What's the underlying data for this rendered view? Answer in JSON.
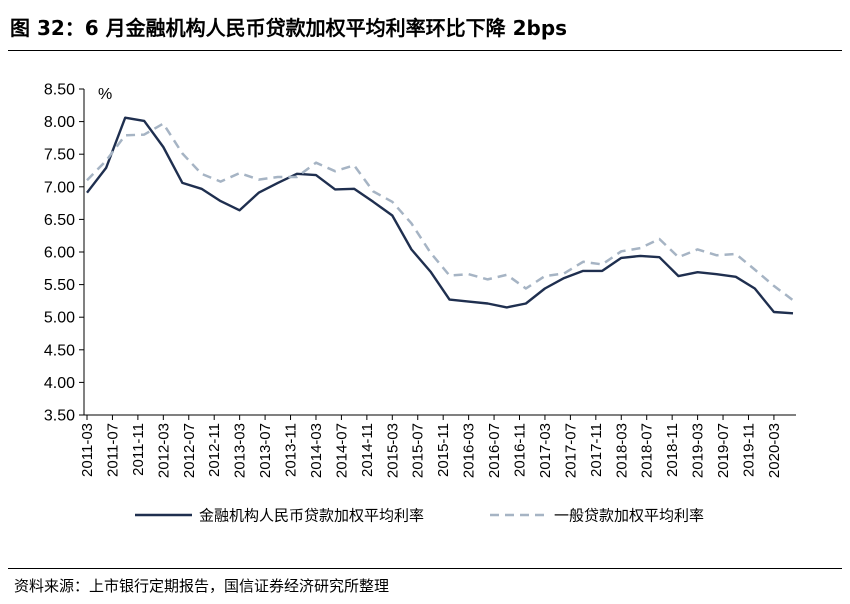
{
  "title": "图 32：6 月金融机构人民币贷款加权平均利率环比下降 2bps",
  "source": "资料来源：上市银行定期报告，国信证券经济研究所整理",
  "chart_data": {
    "type": "line",
    "title": "图 32：6 月金融机构人民币贷款加权平均利率环比下降 2bps",
    "xlabel": "",
    "ylabel": "%",
    "ylim": [
      3.5,
      8.5
    ],
    "yticks": [
      "3.50",
      "4.00",
      "4.50",
      "5.00",
      "5.50",
      "6.00",
      "6.50",
      "7.00",
      "7.50",
      "8.00",
      "8.50"
    ],
    "x_tick_labels": [
      "2011-03",
      "2011-07",
      "2011-11",
      "2012-03",
      "2012-07",
      "2012-11",
      "2013-03",
      "2013-07",
      "2013-11",
      "2014-03",
      "2014-07",
      "2014-11",
      "2015-03",
      "2015-07",
      "2015-11",
      "2016-03",
      "2016-07",
      "2016-11",
      "2017-03",
      "2017-07",
      "2017-11",
      "2018-03",
      "2018-07",
      "2018-11",
      "2019-03",
      "2019-07",
      "2019-11",
      "2020-03"
    ],
    "x": [
      "2011-03",
      "2011-06",
      "2011-09",
      "2011-12",
      "2012-03",
      "2012-06",
      "2012-09",
      "2012-12",
      "2013-03",
      "2013-06",
      "2013-09",
      "2013-12",
      "2014-03",
      "2014-06",
      "2014-09",
      "2014-12",
      "2015-03",
      "2015-06",
      "2015-09",
      "2015-12",
      "2016-03",
      "2016-06",
      "2016-09",
      "2016-12",
      "2017-03",
      "2017-06",
      "2017-09",
      "2017-12",
      "2018-03",
      "2018-06",
      "2018-09",
      "2018-12",
      "2019-03",
      "2019-06",
      "2019-09",
      "2019-12",
      "2020-03",
      "2020-06"
    ],
    "legend_position": "bottom",
    "grid": false,
    "series": [
      {
        "name": "金融机构人民币贷款加权平均利率",
        "color": "#1f2f4f",
        "style": "solid",
        "values": [
          6.91,
          7.29,
          8.06,
          8.01,
          7.61,
          7.06,
          6.97,
          6.78,
          6.64,
          6.91,
          7.06,
          7.2,
          7.18,
          6.96,
          6.97,
          6.77,
          6.56,
          6.04,
          5.7,
          5.27,
          5.24,
          5.21,
          5.15,
          5.21,
          5.44,
          5.6,
          5.71,
          5.71,
          5.91,
          5.94,
          5.92,
          5.63,
          5.69,
          5.66,
          5.62,
          5.44,
          5.08,
          5.06
        ]
      },
      {
        "name": "一般贷款加权平均利率",
        "color": "#a6b4c4",
        "style": "dashed",
        "values": [
          7.1,
          7.4,
          7.79,
          7.8,
          7.97,
          7.51,
          7.2,
          7.08,
          7.21,
          7.11,
          7.15,
          7.15,
          7.37,
          7.24,
          7.33,
          6.93,
          6.77,
          6.44,
          5.99,
          5.64,
          5.66,
          5.58,
          5.65,
          5.44,
          5.63,
          5.67,
          5.85,
          5.81,
          6.01,
          6.06,
          6.2,
          5.92,
          6.04,
          5.95,
          5.97,
          5.73,
          5.48,
          5.26
        ]
      }
    ]
  }
}
